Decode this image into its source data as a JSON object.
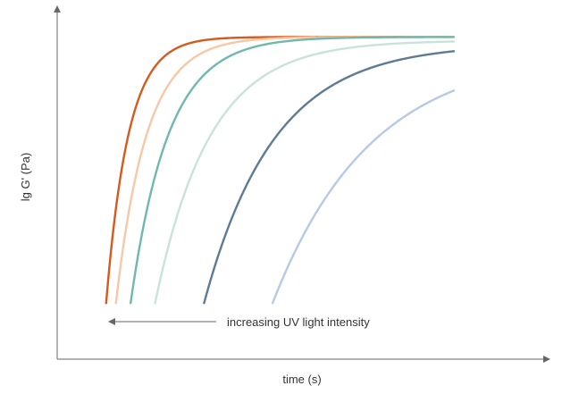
{
  "chart_data": {
    "type": "line",
    "title": "",
    "xlabel": "time (s)",
    "ylabel": "lg G' (Pa)",
    "grid": false,
    "legend": "none",
    "xlim": [
      0,
      1
    ],
    "ylim": [
      0,
      1
    ],
    "annotation": {
      "text": "increasing UV light intensity",
      "arrow_direction": "left"
    },
    "series": [
      {
        "color": "#d65a1d",
        "onset": 0.1,
        "plateau": 0.92,
        "rate": 22
      },
      {
        "color": "#f6c8a7",
        "onset": 0.12,
        "plateau": 0.92,
        "rate": 16
      },
      {
        "color": "#6fb8ae",
        "onset": 0.15,
        "plateau": 0.92,
        "rate": 13
      },
      {
        "color": "#c9e3db",
        "onset": 0.2,
        "plateau": 0.91,
        "rate": 9
      },
      {
        "color": "#5d7b94",
        "onset": 0.3,
        "plateau": 0.9,
        "rate": 7
      },
      {
        "color": "#b7c9e6",
        "onset": 0.44,
        "plateau": 0.88,
        "rate": 5
      }
    ]
  }
}
